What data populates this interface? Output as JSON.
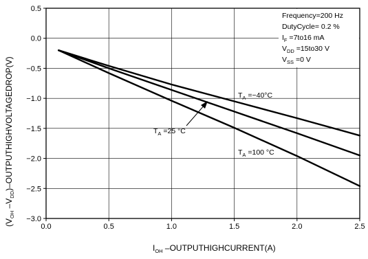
{
  "chart_data": {
    "type": "line",
    "title": "",
    "xlabel": {
      "main": "I",
      "sub": "OH",
      "rest": " –OUTPUTHIGHCURRENT(A)"
    },
    "ylabel": {
      "p1": "(V",
      "s1": "OH",
      "p2": " –V",
      "s2": "DD",
      "p3": ")–OUTPUTHIGHVOLTAGEDROP(V)"
    },
    "xlim": [
      0.0,
      2.5
    ],
    "ylim": [
      -3.0,
      0.5
    ],
    "x_ticks": [
      "0.0",
      "0.5",
      "1.0",
      "1.5",
      "2.0",
      "2.5"
    ],
    "y_ticks": [
      "0.5",
      "0.0",
      "−0.5",
      "−1.0",
      "−1.5",
      "−2.0",
      "−2.5",
      "−3.0"
    ],
    "grid": true,
    "series": [
      {
        "label": {
          "t": "T",
          "s": "A",
          "r": " =−40°C"
        },
        "x": [
          0.1,
          0.5,
          1.0,
          1.5,
          2.0,
          2.5
        ],
        "y": [
          -0.2,
          -0.46,
          -0.77,
          -1.05,
          -1.33,
          -1.62
        ]
      },
      {
        "label": {
          "t": "T",
          "s": "A",
          "r": " =25 °C"
        },
        "x": [
          0.1,
          0.5,
          1.0,
          1.5,
          2.0,
          2.5
        ],
        "y": [
          -0.2,
          -0.5,
          -0.86,
          -1.22,
          -1.58,
          -1.95
        ]
      },
      {
        "label": {
          "t": "T",
          "s": "A",
          "r": " =100  °C"
        },
        "x": [
          0.1,
          0.5,
          1.0,
          1.5,
          2.0,
          2.5
        ],
        "y": [
          -0.2,
          -0.58,
          -1.04,
          -1.49,
          -1.96,
          -2.46
        ]
      }
    ],
    "conditions": [
      {
        "t": "Frequency=200 Hz"
      },
      {
        "t": "DutyCycle=  0.2 %"
      },
      {
        "t": "I",
        "s": "F",
        "r": " =7to16 mA"
      },
      {
        "t": "V",
        "s": "DD",
        "r": " =15to30 V"
      },
      {
        "t": "V",
        "s": "SS",
        "r": " =0 V"
      }
    ]
  }
}
